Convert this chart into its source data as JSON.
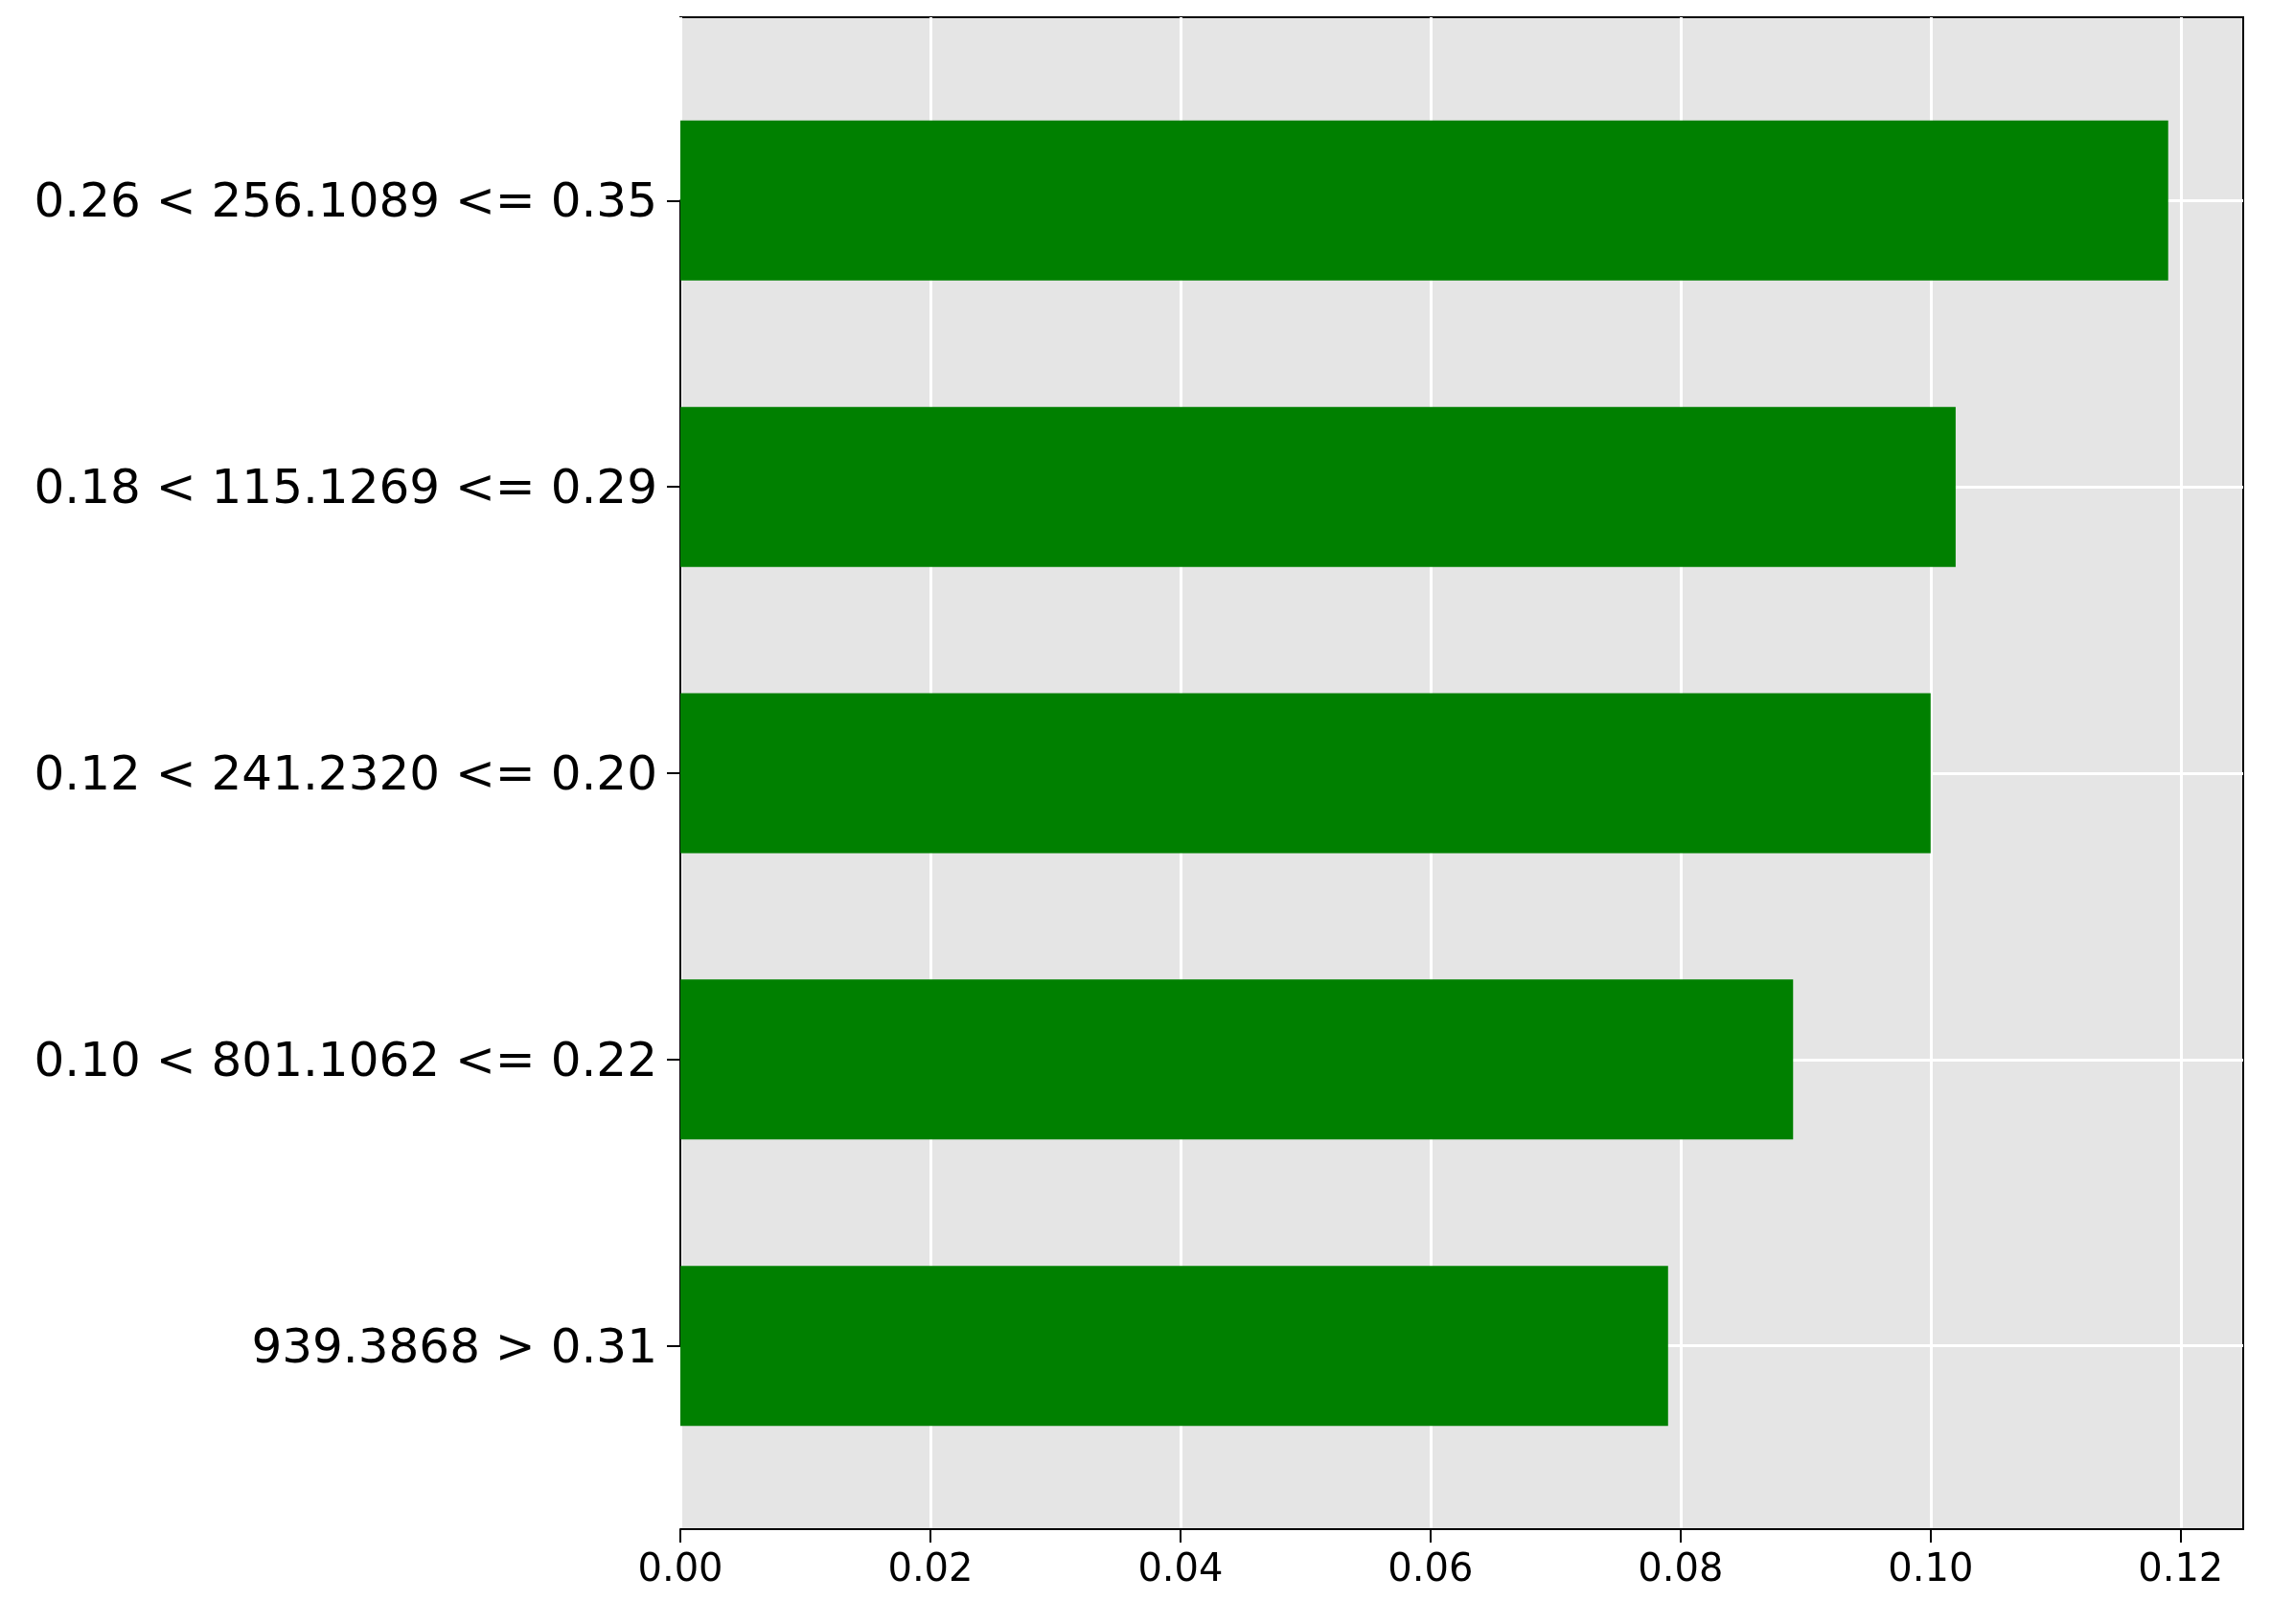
{
  "chart_data": {
    "type": "bar",
    "orientation": "horizontal",
    "categories": [
      "0.26 < 256.1089 <= 0.35",
      "0.18 < 115.1269 <= 0.29",
      "0.12 < 241.2320 <= 0.20",
      "0.10 < 801.1062 <= 0.22",
      "939.3868 > 0.31"
    ],
    "values": [
      0.119,
      0.102,
      0.1,
      0.089,
      0.079
    ],
    "color": "#008000",
    "xlim": [
      0,
      0.125
    ],
    "xticks": [
      {
        "value": 0,
        "label": "0.00"
      },
      {
        "value": 0.02,
        "label": "0.02"
      },
      {
        "value": 0.04,
        "label": "0.04"
      },
      {
        "value": 0.06,
        "label": "0.06"
      },
      {
        "value": 0.08,
        "label": "0.08"
      },
      {
        "value": 0.1,
        "label": "0.10"
      },
      {
        "value": 0.12,
        "label": "0.12"
      }
    ],
    "grid": true
  }
}
